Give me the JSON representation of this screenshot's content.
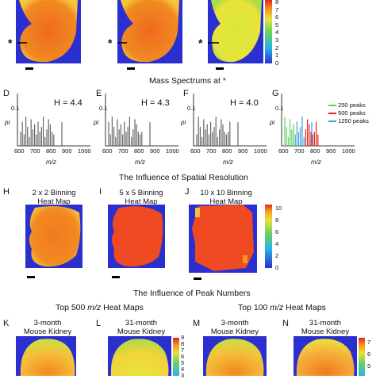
{
  "colors": {
    "blue": "#2b2fd0",
    "red": "#ef3b1f",
    "orange": "#f59a1c",
    "yellow": "#e8e33a",
    "green": "#6cd35a",
    "gray": "#666666"
  },
  "top_colorbar_ticks": [
    "8",
    "7",
    "6",
    "5",
    "4",
    "3",
    "2",
    "1",
    "0"
  ],
  "star": "*",
  "spectra_title": "Mass Spectrums at",
  "spectra": [
    {
      "letter": "D",
      "h": "H = 4.4",
      "ylabel": "pi",
      "y_tick": "0.1",
      "xlabel": "m/z",
      "x_ticks": [
        "600",
        "700",
        "800",
        "900",
        "1000"
      ]
    },
    {
      "letter": "E",
      "h": "H = 4.3",
      "ylabel": "pi",
      "y_tick": "0.1",
      "xlabel": "m/z",
      "x_ticks": [
        "600",
        "700",
        "800",
        "900",
        "1000"
      ]
    },
    {
      "letter": "F",
      "h": "H = 4.0",
      "ylabel": "pi",
      "y_tick": "0.1",
      "xlabel": "m/z",
      "x_ticks": [
        "600",
        "700",
        "800",
        "900",
        "1000"
      ]
    },
    {
      "letter": "G",
      "h": "",
      "ylabel": "pi",
      "y_tick": "0.1",
      "xlabel": "m/z",
      "x_ticks": [
        "600",
        "700",
        "800",
        "900",
        "1000"
      ]
    }
  ],
  "legend_g": [
    {
      "label": "250 peaks",
      "color": "#5fd35a"
    },
    {
      "label": "500 peaks",
      "color": "#e8231f"
    },
    {
      "label": "1250 peaks",
      "color": "#3aa0e0"
    }
  ],
  "spatial_title": "The Influence of Spatial Resolution",
  "binning": [
    {
      "letter": "H",
      "line1": "2 x 2 Binning",
      "line2": "Heat Map"
    },
    {
      "letter": "I",
      "line1": "5 x 5 Binning",
      "line2": "Heat Map"
    },
    {
      "letter": "J",
      "line1": "10 x 10 Binning",
      "line2": "Heat Map"
    }
  ],
  "mid_colorbar_ticks": [
    "10",
    "8",
    "6",
    "4",
    "2",
    "0"
  ],
  "peak_title": "The Influence of Peak Numbers",
  "top500": "Top 500 m/z Heat Maps",
  "top100": "Top 100 m/z Heat Maps",
  "bottom_panels": [
    {
      "letter": "K",
      "line1": "3-month",
      "line2": "Mouse Kidney"
    },
    {
      "letter": "L",
      "line1": "31-month",
      "line2": "Mouse Kidney"
    },
    {
      "letter": "M",
      "line1": "3-month",
      "line2": "Mouse Kidney"
    },
    {
      "letter": "N",
      "line1": "31-month",
      "line2": "Mouse Kidney"
    }
  ],
  "bottom_cbar1_ticks": [
    "9",
    "8",
    "7",
    "6",
    "5",
    "4",
    "3"
  ],
  "bottom_cbar2_ticks": [
    "7",
    "6",
    "5"
  ]
}
